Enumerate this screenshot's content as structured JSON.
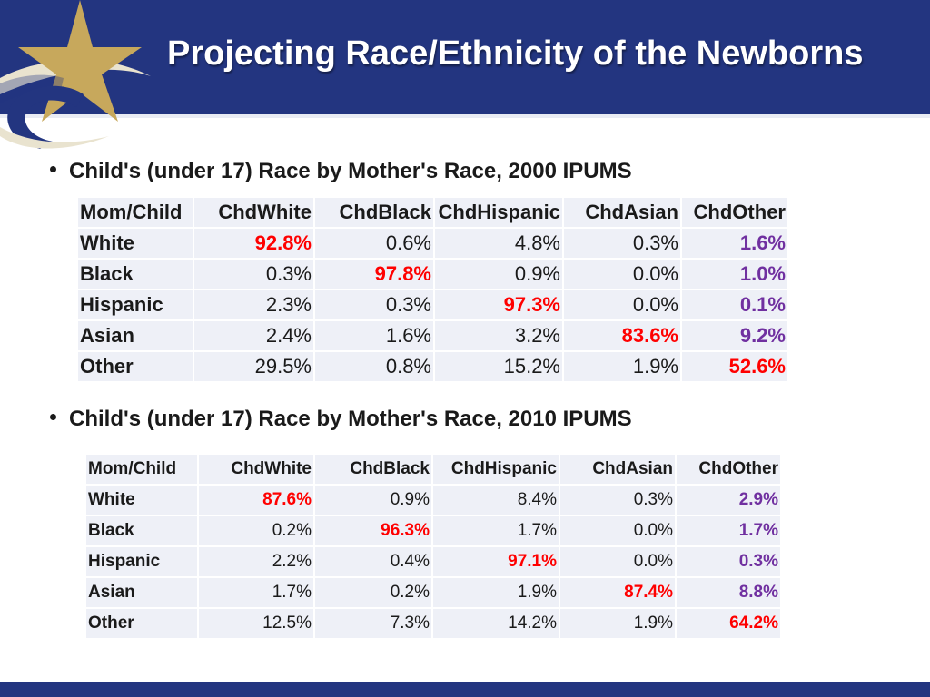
{
  "slide": {
    "title": "Projecting Race/Ethnicity of the Newborns",
    "colors": {
      "header": "#233580",
      "highlight_diag": "#ff0000",
      "highlight_other": "#7030a0",
      "logo_gold": "#c7a85c"
    }
  },
  "section_2000": {
    "bullet": "Child's (under 17) Race by Mother's Race, 2000 IPUMS",
    "header": [
      "Mom/Child",
      "ChdWhite",
      "ChdBlack",
      "ChdHispanic",
      "ChdAsian",
      "ChdOther"
    ],
    "rows": [
      {
        "label": "White",
        "values": [
          "92.8%",
          "0.6%",
          "4.8%",
          "0.3%",
          "1.6%"
        ],
        "diag": 0
      },
      {
        "label": "Black",
        "values": [
          "0.3%",
          "97.8%",
          "0.9%",
          "0.0%",
          "1.0%"
        ],
        "diag": 1
      },
      {
        "label": "Hispanic",
        "values": [
          "2.3%",
          "0.3%",
          "97.3%",
          "0.0%",
          "0.1%"
        ],
        "diag": 2
      },
      {
        "label": "Asian",
        "values": [
          "2.4%",
          "1.6%",
          "3.2%",
          "83.6%",
          "9.2%"
        ],
        "diag": 3
      },
      {
        "label": "Other",
        "values": [
          "29.5%",
          "0.8%",
          "15.2%",
          "1.9%",
          "52.6%"
        ],
        "diag": 4
      }
    ]
  },
  "section_2010": {
    "bullet": "Child's (under 17) Race by Mother's Race, 2010 IPUMS",
    "header": [
      "Mom/Child",
      "ChdWhite",
      "ChdBlack",
      "ChdHispanic",
      "ChdAsian",
      "ChdOther"
    ],
    "rows": [
      {
        "label": "White",
        "values": [
          "87.6%",
          "0.9%",
          "8.4%",
          "0.3%",
          "2.9%"
        ],
        "diag": 0
      },
      {
        "label": "Black",
        "values": [
          "0.2%",
          "96.3%",
          "1.7%",
          "0.0%",
          "1.7%"
        ],
        "diag": 1
      },
      {
        "label": "Hispanic",
        "values": [
          "2.2%",
          "0.4%",
          "97.1%",
          "0.0%",
          "0.3%"
        ],
        "diag": 2
      },
      {
        "label": "Asian",
        "values": [
          "1.7%",
          "0.2%",
          "1.9%",
          "87.4%",
          "8.8%"
        ],
        "diag": 3
      },
      {
        "label": "Other",
        "values": [
          "12.5%",
          "7.3%",
          "14.2%",
          "1.9%",
          "64.2%"
        ],
        "diag": 4
      }
    ]
  }
}
